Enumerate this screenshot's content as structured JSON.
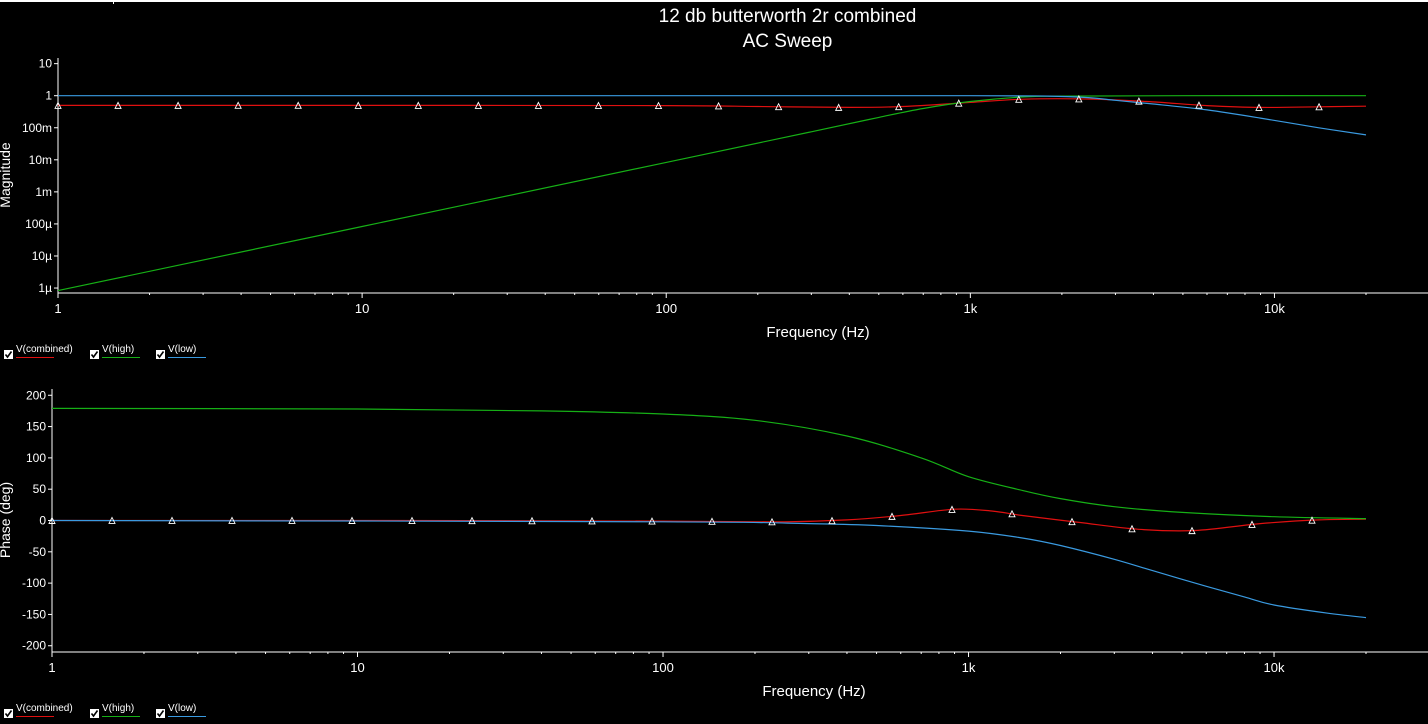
{
  "title": "12 db butterworth 2r combined",
  "subtitle": "AC Sweep",
  "colors": {
    "combined": "#e01010",
    "high": "#16b016",
    "low": "#3a9ae0",
    "axis": "#ffffff",
    "marker": "#ffffff"
  },
  "legend": [
    {
      "label": "V(combined)",
      "key": "combined",
      "checked": true
    },
    {
      "label": "V(high)",
      "key": "high",
      "checked": true
    },
    {
      "label": "V(low)",
      "key": "low",
      "checked": true
    }
  ],
  "chart_data": [
    {
      "type": "line",
      "xscale": "log",
      "yscale": "log",
      "xlabel": "Frequency (Hz)",
      "ylabel": "Magnitude",
      "xlim": [
        1,
        20000
      ],
      "ylim": [
        7e-07,
        15
      ],
      "xticks": [
        {
          "v": 1,
          "label": "1"
        },
        {
          "v": 10,
          "label": "10"
        },
        {
          "v": 100,
          "label": "100"
        },
        {
          "v": 1000,
          "label": "1k"
        },
        {
          "v": 10000,
          "label": "10k"
        }
      ],
      "yticks": [
        {
          "v": 10,
          "label": "10"
        },
        {
          "v": 1,
          "label": "1"
        },
        {
          "v": 0.1,
          "label": "100m"
        },
        {
          "v": 0.01,
          "label": "10m"
        },
        {
          "v": 0.001,
          "label": "1m"
        },
        {
          "v": 0.0001,
          "label": "100µ"
        },
        {
          "v": 1e-05,
          "label": "10µ"
        },
        {
          "v": 1e-06,
          "label": "1µ"
        }
      ],
      "series": [
        {
          "name": "V(combined)",
          "key": "combined",
          "markers": true,
          "x": [
            1,
            10,
            100,
            200,
            400,
            600,
            1000,
            1500,
            2400,
            3800,
            6000,
            9000,
            14000,
            20000
          ],
          "y": [
            0.5,
            0.5,
            0.49,
            0.46,
            0.43,
            0.46,
            0.62,
            0.78,
            0.79,
            0.66,
            0.49,
            0.43,
            0.45,
            0.47
          ]
        },
        {
          "name": "V(high)",
          "key": "high",
          "markers": false,
          "x": [
            1,
            10,
            100,
            300,
            500,
            700,
            1000,
            1500,
            2000,
            5000,
            20000
          ],
          "y": [
            8.3e-07,
            8.3e-05,
            0.0083,
            0.075,
            0.21,
            0.4,
            0.66,
            0.92,
            0.97,
            0.999,
            1.0
          ]
        },
        {
          "name": "V(low)",
          "key": "low",
          "markers": false,
          "x": [
            1,
            100,
            1000,
            1800,
            2400,
            3000,
            4000,
            6000,
            9000,
            14000,
            20000
          ],
          "y": [
            1.0,
            1.0,
            1.0,
            0.97,
            0.88,
            0.72,
            0.55,
            0.36,
            0.2,
            0.1,
            0.06
          ]
        }
      ]
    },
    {
      "type": "line",
      "xscale": "log",
      "xlabel": "Frequency (Hz)",
      "ylabel": "Phase (deg)",
      "xlim": [
        1,
        20000
      ],
      "ylim": [
        -210,
        210
      ],
      "xticks": [
        {
          "v": 1,
          "label": "1"
        },
        {
          "v": 10,
          "label": "10"
        },
        {
          "v": 100,
          "label": "100"
        },
        {
          "v": 1000,
          "label": "1k"
        },
        {
          "v": 10000,
          "label": "10k"
        }
      ],
      "yticks": [
        {
          "v": 200,
          "label": "200"
        },
        {
          "v": 150,
          "label": "150"
        },
        {
          "v": 100,
          "label": "100"
        },
        {
          "v": 50,
          "label": "50"
        },
        {
          "v": 0,
          "label": "0"
        },
        {
          "v": -50,
          "label": "-50"
        },
        {
          "v": -100,
          "label": "-100"
        },
        {
          "v": -150,
          "label": "-150"
        },
        {
          "v": -200,
          "label": "-200"
        }
      ],
      "series": [
        {
          "name": "V(combined)",
          "key": "combined",
          "markers": true,
          "x": [
            1,
            10,
            100,
            250,
            400,
            600,
            900,
            1200,
            1500,
            2300,
            3600,
            5500,
            9000,
            14000,
            20000
          ],
          "y": [
            0,
            0,
            -1,
            -2,
            1,
            8,
            18,
            15,
            8,
            -3,
            -14,
            -16,
            -5,
            1,
            2
          ]
        },
        {
          "name": "V(high)",
          "key": "high",
          "markers": false,
          "x": [
            1,
            10,
            40,
            100,
            200,
            400,
            700,
            1000,
            1500,
            2000,
            3000,
            5000,
            10000,
            20000
          ],
          "y": [
            179,
            178,
            175,
            170,
            160,
            135,
            100,
            70,
            48,
            35,
            22,
            13,
            6,
            3
          ]
        },
        {
          "name": "V(low)",
          "key": "low",
          "markers": false,
          "x": [
            1,
            100,
            300,
            500,
            1000,
            1500,
            2000,
            3000,
            4000,
            6000,
            8000,
            10000,
            15000,
            20000
          ],
          "y": [
            0,
            -2,
            -5,
            -8,
            -17,
            -28,
            -40,
            -62,
            -80,
            -105,
            -122,
            -135,
            -148,
            -155
          ]
        }
      ]
    }
  ]
}
